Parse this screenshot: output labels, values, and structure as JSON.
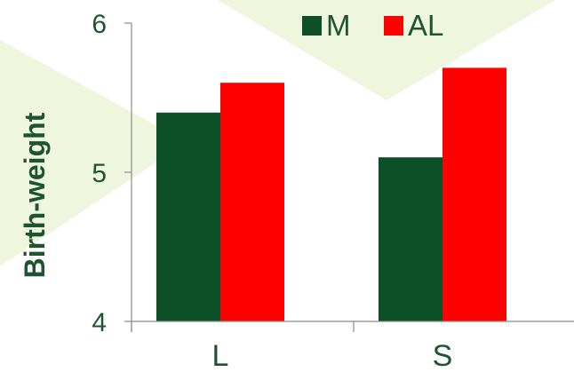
{
  "chart_data": {
    "type": "bar",
    "categories": [
      "L",
      "S"
    ],
    "series": [
      {
        "name": "M",
        "color": "#0d4f26",
        "values": [
          5.4,
          5.1
        ]
      },
      {
        "name": "AL",
        "color": "#ff0000",
        "values": [
          5.6,
          5.7
        ]
      }
    ],
    "title": "",
    "xlabel": "",
    "ylabel": "Birth-weight",
    "ylim": [
      4,
      6
    ],
    "yticks": [
      4,
      5,
      6
    ],
    "grid": false,
    "legend_position": "top-right"
  },
  "colors": {
    "text": "#1f5430",
    "axis": "#8c8c8c",
    "background_accent": "#eef7de"
  }
}
